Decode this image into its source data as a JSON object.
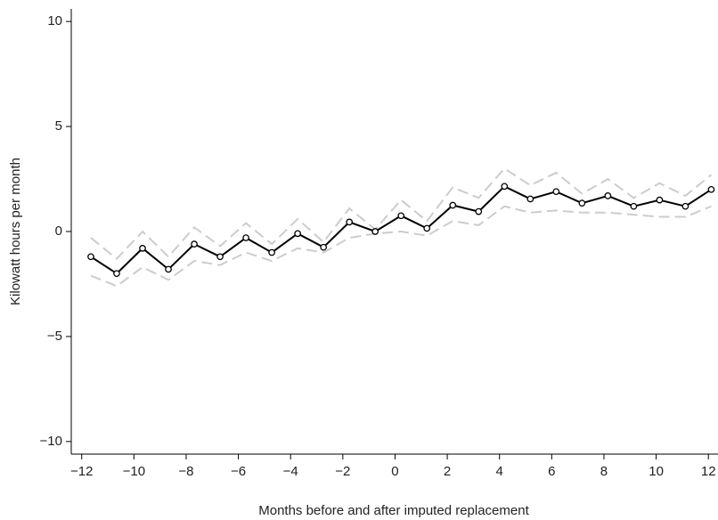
{
  "chart_data": {
    "type": "line",
    "x_label": "Months before and after imputed replacement",
    "y_label": "Kilowatt hours per month",
    "x": [
      -11.65,
      -10.66,
      -9.67,
      -8.68,
      -7.69,
      -6.7,
      -5.71,
      -4.72,
      -3.73,
      -2.74,
      -1.75,
      -0.76,
      0.23,
      1.22,
      2.21,
      3.2,
      4.19,
      5.18,
      6.17,
      7.16,
      8.15,
      9.14,
      10.13,
      11.12,
      12.11
    ],
    "series": [
      {
        "color": "#cccccc",
        "line_style": "dashed",
        "markers": false,
        "values": [
          -0.3,
          -1.3,
          0.0,
          -1.2,
          0.2,
          -0.7,
          0.4,
          -0.6,
          0.6,
          -0.5,
          1.1,
          0.1,
          1.5,
          0.5,
          2.1,
          1.6,
          3.0,
          2.2,
          2.8,
          1.8,
          2.5,
          1.6,
          2.3,
          1.7,
          2.7
        ]
      },
      {
        "color": "#cccccc",
        "line_style": "dashed",
        "markers": false,
        "values": [
          -2.1,
          -2.6,
          -1.7,
          -2.3,
          -1.4,
          -1.6,
          -1.0,
          -1.4,
          -0.8,
          -1.0,
          -0.3,
          -0.1,
          0.0,
          -0.2,
          0.5,
          0.3,
          1.2,
          0.9,
          1.0,
          0.9,
          0.9,
          0.8,
          0.7,
          0.7,
          1.2
        ]
      },
      {
        "color": "#000000",
        "line_style": "solid",
        "markers": true,
        "values": [
          -1.2,
          -2.0,
          -0.8,
          -1.8,
          -0.6,
          -1.2,
          -0.3,
          -1.0,
          -0.1,
          -0.75,
          0.45,
          0.0,
          0.75,
          0.15,
          1.25,
          0.95,
          2.15,
          1.55,
          1.9,
          1.35,
          1.7,
          1.2,
          1.5,
          1.2,
          2.0
        ]
      }
    ],
    "xlim": [
      -12.4,
      12.3
    ],
    "ylim": [
      -10.6,
      10.6
    ],
    "xticks": [
      {
        "value": -12,
        "label": "−12"
      },
      {
        "value": -10,
        "label": "−10"
      },
      {
        "value": -8,
        "label": "−8"
      },
      {
        "value": -6,
        "label": "−6"
      },
      {
        "value": -4,
        "label": "−4"
      },
      {
        "value": -2,
        "label": "−2"
      },
      0,
      2,
      4,
      6,
      8,
      10,
      12
    ],
    "yticks": [
      {
        "value": -10,
        "label": "−10"
      },
      {
        "value": -5,
        "label": "−5"
      },
      0,
      5,
      10
    ],
    "grid": false
  }
}
